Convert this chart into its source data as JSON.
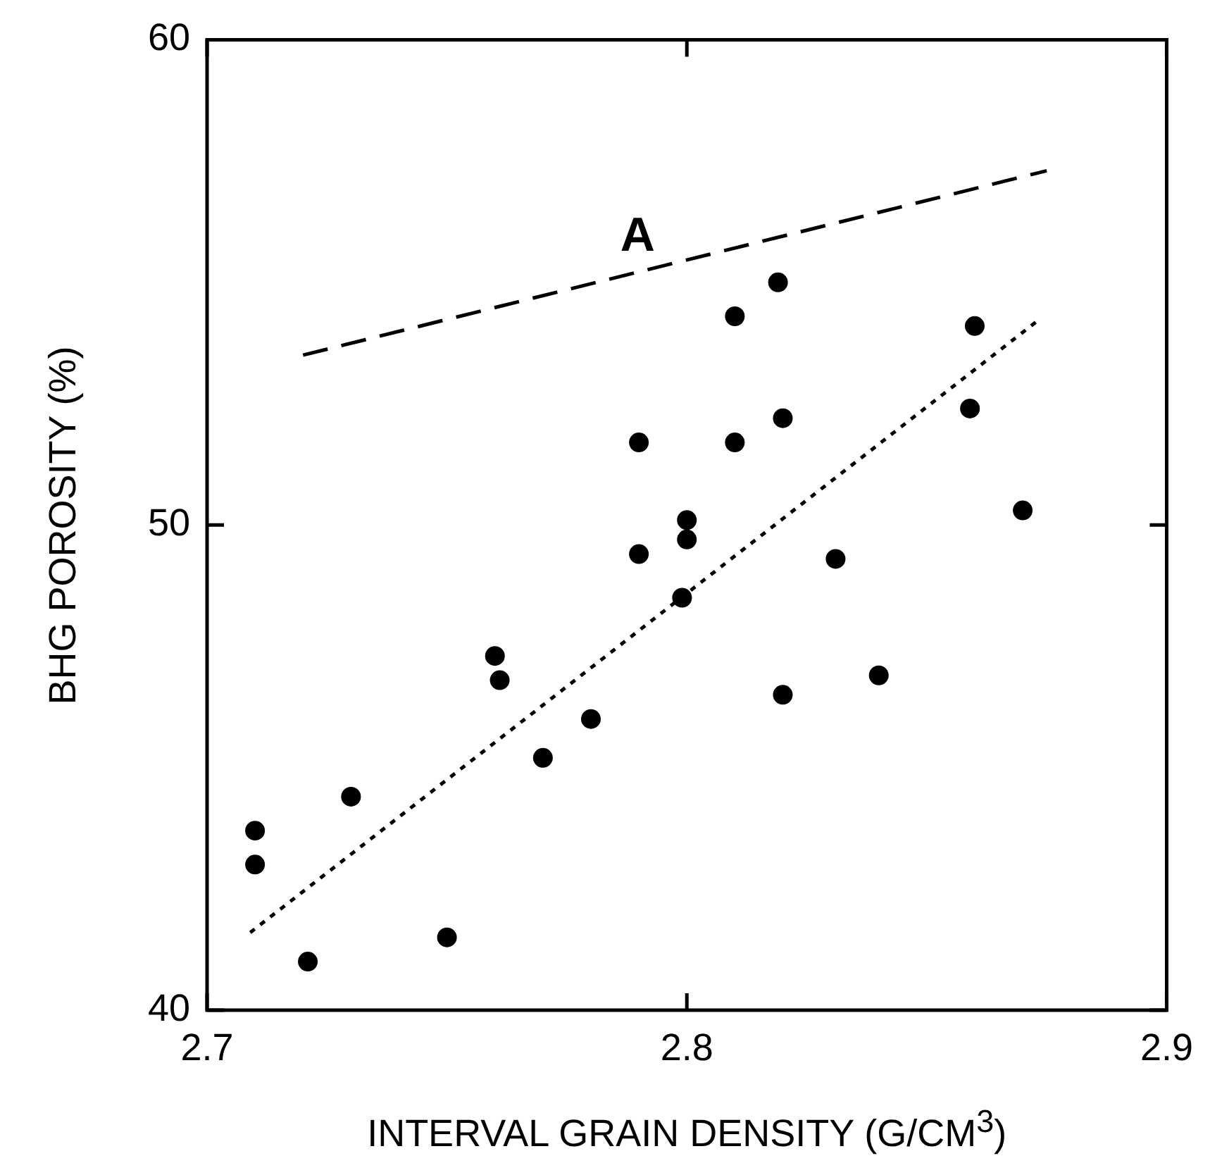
{
  "chart_data": {
    "type": "scatter",
    "xlabel": "INTERVAL GRAIN DENSITY (G/CM$^{3}$)",
    "ylabel": "BHG POROSITY (%)",
    "xlim": [
      2.7,
      2.9
    ],
    "xticks": [
      2.7,
      2.8,
      2.9
    ],
    "ylim": [
      40,
      60
    ],
    "yticks": [
      40,
      50,
      60
    ],
    "grid": false,
    "legend": false,
    "marker": "circle",
    "series": [
      {
        "color": "#000000",
        "x": [
          2.71,
          2.71,
          2.721,
          2.73,
          2.75,
          2.76,
          2.761,
          2.77,
          2.78,
          2.79,
          2.79,
          2.799,
          2.8,
          2.8,
          2.81,
          2.81,
          2.819,
          2.82,
          2.82,
          2.831,
          2.84,
          2.859,
          2.86,
          2.87
        ],
        "values": [
          43.7,
          43.0,
          41.0,
          44.4,
          41.5,
          47.3,
          46.8,
          45.2,
          46.0,
          51.7,
          49.4,
          48.5,
          50.1,
          49.7,
          54.3,
          51.7,
          55.0,
          52.2,
          46.5,
          49.3,
          46.9,
          52.4,
          54.1,
          50.3
        ]
      },
      {
        "type": "line",
        "color": "#000000",
        "marker": "none",
        "line_style": "dotted",
        "x": [
          2.709,
          2.873
        ],
        "values": [
          41.6,
          54.2
        ]
      },
      {
        "type": "line",
        "color": "#000000",
        "marker": "none",
        "line_style": "dashed",
        "x": [
          2.72,
          2.875
        ],
        "values": [
          53.5,
          57.3
        ]
      }
    ],
    "annotations": [
      "A"
    ]
  }
}
